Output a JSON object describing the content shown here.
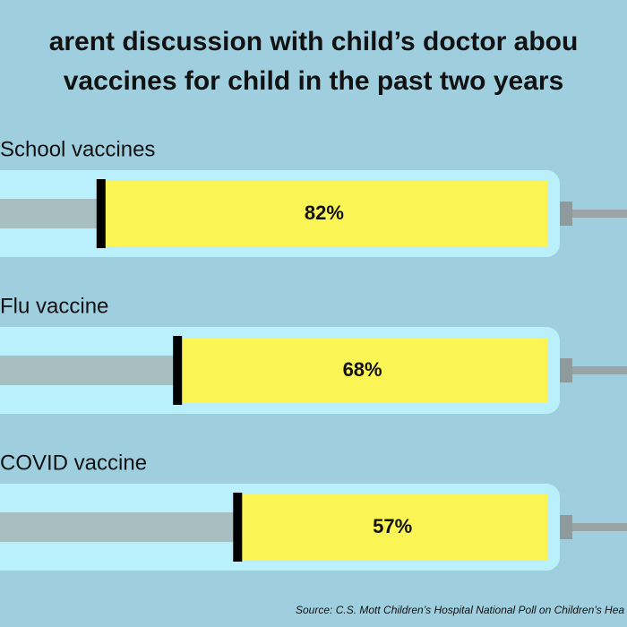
{
  "chart_data": {
    "type": "syringe-bar",
    "title": [
      "arent discussion with child’s doctor abou",
      "vaccines for child in the past two years"
    ],
    "categories": [
      "School vaccines",
      "Flu vaccine",
      "COVID vaccine"
    ],
    "values": [
      82,
      68,
      57
    ],
    "value_labels": [
      "82%",
      "68%",
      "57%"
    ],
    "color": "#fbf455",
    "xlim": [
      0,
      100
    ],
    "source": "Source: C.S. Mott Children’s Hospital National Poll on Children’s Hea"
  }
}
